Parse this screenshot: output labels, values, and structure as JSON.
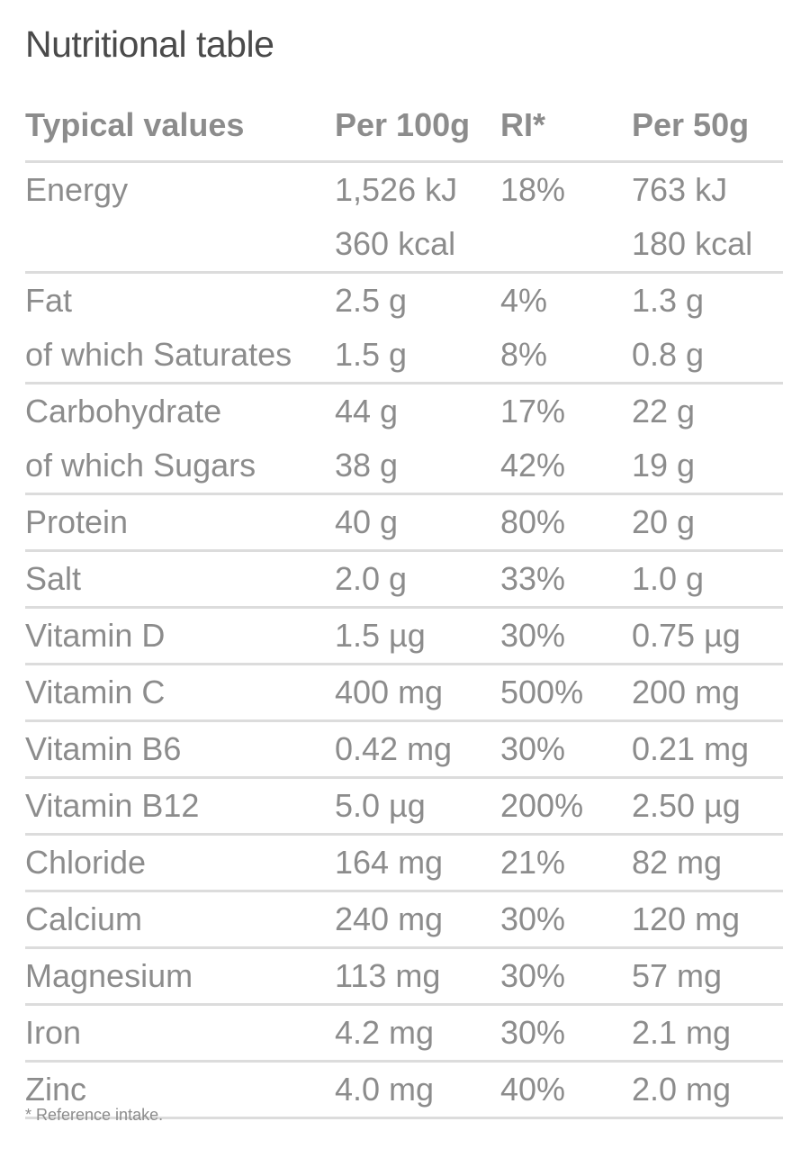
{
  "title": "Nutritional table",
  "header": [
    "Typical values",
    "Per 100g",
    "RI*",
    "Per 50g"
  ],
  "groups": [
    [
      [
        "Energy",
        "1,526 kJ",
        "18%",
        "763 kJ"
      ],
      [
        "",
        "360 kcal",
        "",
        "180 kcal"
      ]
    ],
    [
      [
        "Fat",
        "2.5 g",
        "4%",
        "1.3 g"
      ],
      [
        "of which Saturates",
        "1.5 g",
        "8%",
        "0.8 g"
      ]
    ],
    [
      [
        "Carbohydrate",
        "44 g",
        "17%",
        "22 g"
      ],
      [
        "of which Sugars",
        "38 g",
        "42%",
        "19 g"
      ]
    ],
    [
      [
        "Protein",
        "40 g",
        "80%",
        "20 g"
      ]
    ],
    [
      [
        "Salt",
        "2.0 g",
        "33%",
        "1.0 g"
      ]
    ],
    [
      [
        "Vitamin D",
        "1.5 µg",
        "30%",
        "0.75 µg"
      ]
    ],
    [
      [
        "Vitamin C",
        "400 mg",
        "500%",
        "200 mg"
      ]
    ],
    [
      [
        "Vitamin B6",
        "0.42 mg",
        "30%",
        "0.21 mg"
      ]
    ],
    [
      [
        "Vitamin B12",
        "5.0 µg",
        "200%",
        "2.50 µg"
      ]
    ],
    [
      [
        "Chloride",
        "164 mg",
        "21%",
        "82 mg"
      ]
    ],
    [
      [
        "Calcium",
        "240 mg",
        "30%",
        "120 mg"
      ]
    ],
    [
      [
        "Magnesium",
        "113 mg",
        "30%",
        "57 mg"
      ]
    ],
    [
      [
        "Iron",
        "4.2 mg",
        "30%",
        "2.1 mg"
      ]
    ],
    [
      [
        "Zinc",
        "4.0 mg",
        "40%",
        "2.0 mg"
      ]
    ]
  ],
  "footnote": "* Reference intake."
}
